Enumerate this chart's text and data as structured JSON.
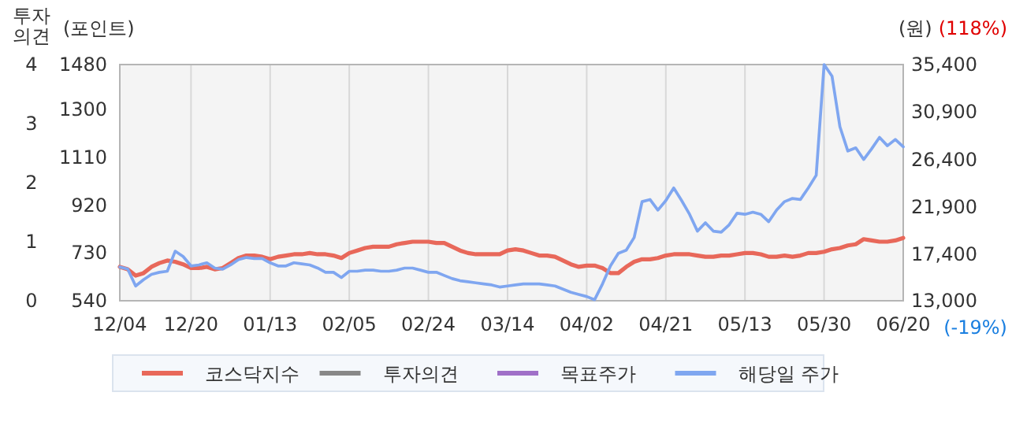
{
  "chart_data": {
    "type": "line",
    "ylabel": "(포인트)",
    "y2label": "(원)",
    "y3label": "투자의견",
    "categories": [
      "12/04",
      null,
      null,
      null,
      null,
      null,
      null,
      null,
      null,
      "12/20",
      null,
      null,
      null,
      null,
      null,
      null,
      null,
      null,
      null,
      "01/13",
      null,
      null,
      null,
      null,
      null,
      null,
      null,
      null,
      null,
      "02/05",
      null,
      null,
      null,
      null,
      null,
      null,
      null,
      null,
      null,
      "02/24",
      null,
      null,
      null,
      null,
      null,
      null,
      null,
      null,
      null,
      "03/14",
      null,
      null,
      null,
      null,
      null,
      null,
      null,
      null,
      null,
      "04/02",
      null,
      null,
      null,
      null,
      null,
      null,
      null,
      null,
      null,
      "04/21",
      null,
      null,
      null,
      null,
      null,
      null,
      null,
      null,
      null,
      "05/13",
      null,
      null,
      null,
      null,
      null,
      null,
      null,
      null,
      null,
      "05/30",
      null,
      null,
      null,
      null,
      null,
      null,
      null,
      null,
      null,
      "06/20"
    ],
    "ylim": [
      540,
      1480
    ],
    "yticks": [
      540,
      730,
      920,
      1110,
      1300,
      1480
    ],
    "y2lim": [
      13000,
      35400
    ],
    "y2ticks": [
      {
        "value": 13000,
        "label": "13,000"
      },
      {
        "value": 17400,
        "label": "17,400"
      },
      {
        "value": 21900,
        "label": "21,900"
      },
      {
        "value": 26400,
        "label": "26,400"
      },
      {
        "value": 30900,
        "label": "30,900"
      },
      {
        "value": 35400,
        "label": "35,400"
      }
    ],
    "y3lim": [
      0,
      4
    ],
    "y3ticks": [
      0,
      1,
      2,
      3,
      4
    ],
    "grid": "x",
    "legend": "bottom",
    "annotations": [
      "(118%)",
      "(-19%)"
    ],
    "series": [
      {
        "name": "코스닥지수",
        "color": "#e8685a",
        "axis": "y",
        "values": [
          675,
          665,
          640,
          650,
          675,
          690,
          700,
          695,
          685,
          670,
          670,
          675,
          665,
          670,
          690,
          710,
          720,
          720,
          715,
          705,
          715,
          720,
          725,
          725,
          730,
          725,
          725,
          720,
          710,
          730,
          740,
          750,
          755,
          755,
          755,
          765,
          770,
          775,
          775,
          775,
          770,
          770,
          755,
          740,
          730,
          725,
          725,
          725,
          725,
          740,
          745,
          740,
          730,
          720,
          720,
          715,
          700,
          685,
          675,
          680,
          680,
          670,
          650,
          650,
          675,
          695,
          705,
          705,
          710,
          720,
          725,
          725,
          725,
          720,
          715,
          715,
          720,
          720,
          725,
          730,
          730,
          725,
          715,
          715,
          720,
          715,
          720,
          730,
          730,
          735,
          745,
          750,
          760,
          765,
          785,
          780,
          775,
          775,
          780,
          790
        ]
      },
      {
        "name": "투자의견",
        "color": "#888888",
        "values": [
          null,
          null,
          null,
          null,
          null,
          null,
          null,
          null,
          null,
          null,
          null,
          null,
          null,
          null,
          null,
          null,
          null,
          null,
          null,
          null,
          null,
          null,
          null,
          null,
          null,
          null,
          null,
          null,
          null,
          null,
          null,
          null,
          null,
          null,
          null,
          null,
          null,
          null,
          null,
          null,
          null,
          null,
          null,
          null,
          null,
          null,
          null,
          null,
          null,
          null,
          null,
          null,
          null,
          null,
          null,
          null,
          null,
          null,
          null,
          null,
          null,
          null,
          null,
          null,
          null,
          null,
          null,
          null,
          null,
          null,
          null,
          null,
          null,
          null,
          null,
          null,
          null,
          null,
          null,
          null,
          null,
          null,
          null,
          null,
          null,
          null,
          null,
          null,
          null,
          null,
          null,
          null,
          null,
          null,
          null,
          null,
          null,
          null,
          null,
          null
        ]
      },
      {
        "name": "목표주가",
        "color": "#a070c8",
        "values": [
          null,
          null,
          null,
          null,
          null,
          null,
          null,
          null,
          null,
          null,
          null,
          null,
          null,
          null,
          null,
          null,
          null,
          null,
          null,
          null,
          null,
          null,
          null,
          null,
          null,
          null,
          null,
          null,
          null,
          null,
          null,
          null,
          null,
          null,
          null,
          null,
          null,
          null,
          null,
          null,
          null,
          null,
          null,
          null,
          null,
          null,
          null,
          null,
          null,
          null,
          null,
          null,
          null,
          null,
          null,
          null,
          null,
          null,
          null,
          null,
          null,
          null,
          null,
          null,
          null,
          null,
          null,
          null,
          null,
          null,
          null,
          null,
          null,
          null,
          null,
          null,
          null,
          null,
          null,
          null,
          null,
          null,
          null,
          null,
          null,
          null,
          null,
          null,
          null,
          null,
          null,
          null,
          null,
          null,
          null,
          null,
          null,
          null,
          null,
          null
        ]
      },
      {
        "name": "해당일 주가",
        "color": "#7fa6f0",
        "axis": "y2",
        "values": [
          16200,
          16000,
          14400,
          15000,
          15500,
          15700,
          15800,
          17700,
          17200,
          16300,
          16400,
          16600,
          16100,
          16000,
          16400,
          16900,
          17100,
          17000,
          17000,
          16600,
          16300,
          16300,
          16600,
          16500,
          16400,
          16100,
          15700,
          15700,
          15200,
          15800,
          15800,
          15900,
          15900,
          15800,
          15800,
          15900,
          16100,
          16100,
          15900,
          15700,
          15700,
          15400,
          15100,
          14900,
          14800,
          14700,
          14600,
          14500,
          14300,
          14400,
          14500,
          14600,
          14600,
          14600,
          14500,
          14400,
          14100,
          13800,
          13600,
          13400,
          13100,
          14600,
          16300,
          17500,
          17800,
          19000,
          22400,
          22600,
          21600,
          22500,
          23700,
          22500,
          21200,
          19600,
          20400,
          19600,
          19500,
          20200,
          21300,
          21200,
          21400,
          21200,
          20500,
          21600,
          22400,
          22700,
          22600,
          23700,
          24900,
          35400,
          34300,
          29500,
          27200,
          27500,
          26400,
          27400,
          28500,
          27700,
          28300,
          27600
        ]
      }
    ]
  }
}
